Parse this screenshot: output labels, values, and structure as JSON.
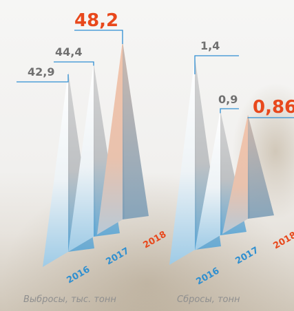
{
  "colors": {
    "highlight": "#e8481c",
    "value_text": "#707070",
    "year_blue": "#2f8fd0",
    "leader_line": "#2e8ed3",
    "caption": "#8f8f8f"
  },
  "chart_data": [
    {
      "type": "bar",
      "title": "Выбросы, тыс. тонн",
      "categories": [
        "2016",
        "2017",
        "2018"
      ],
      "values": [
        42.9,
        44.4,
        48.2
      ],
      "value_labels": [
        "42,9",
        "44,4",
        "48,2"
      ],
      "highlight": "2018",
      "ylim": [
        0,
        50
      ]
    },
    {
      "type": "bar",
      "title": "Сбросы, тонн",
      "categories": [
        "2016",
        "2017",
        "2018"
      ],
      "values": [
        1.4,
        0.9,
        0.86
      ],
      "value_labels": [
        "1,4",
        "0,9",
        "0,86"
      ],
      "highlight": "2018",
      "ylim": [
        0,
        1.6
      ]
    }
  ]
}
